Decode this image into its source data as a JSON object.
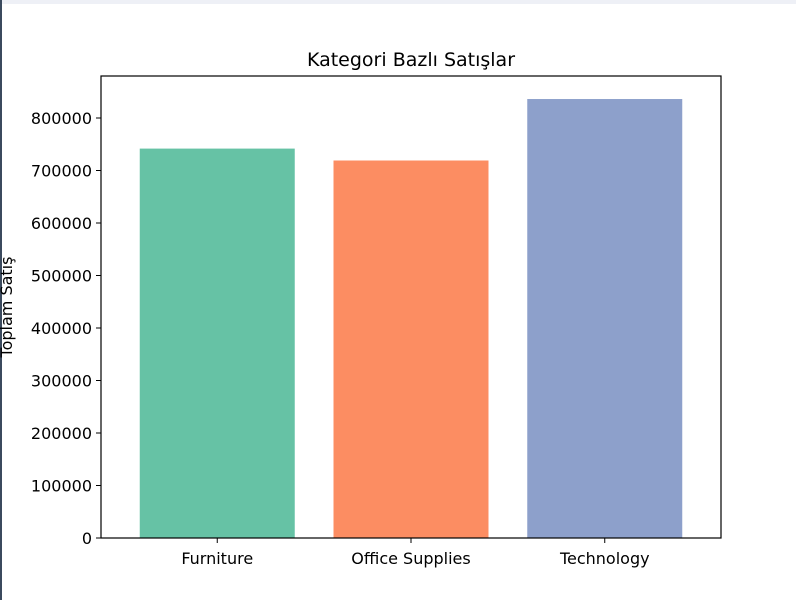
{
  "chart_data": {
    "type": "bar",
    "title": "Kategori Bazlı Satışlar",
    "xlabel": "",
    "ylabel": "Toplam Satış",
    "categories": [
      "Furniture",
      "Office Supplies",
      "Technology"
    ],
    "values": [
      741718,
      719047,
      836154
    ],
    "colors": [
      "#66c2a5",
      "#fc8d62",
      "#8da0cb"
    ],
    "ylim": [
      0,
      880000
    ],
    "yticks": [
      0,
      100000,
      200000,
      300000,
      400000,
      500000,
      600000,
      700000,
      800000
    ],
    "grid": false,
    "legend": "none"
  }
}
